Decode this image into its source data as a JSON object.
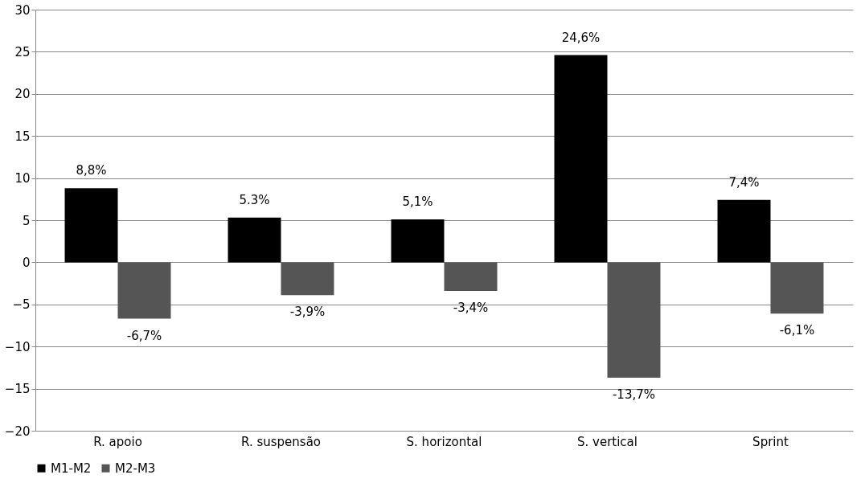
{
  "chart_data": {
    "type": "bar",
    "categories": [
      "R. apoio",
      "R. suspensão",
      "S. horizontal",
      "S. vertical",
      "Sprint"
    ],
    "series": [
      {
        "name": "M1-M2",
        "color": "#000000",
        "values": [
          8.8,
          5.3,
          5.1,
          24.6,
          7.4
        ],
        "value_labels": [
          "8,8%",
          "5.3%",
          "5,1%",
          "24,6%",
          "7,4%"
        ]
      },
      {
        "name": "M2-M3",
        "color": "#555555",
        "values": [
          -6.7,
          -3.9,
          -3.4,
          -13.7,
          -6.1
        ],
        "value_labels": [
          "-6,7%",
          "-3,9%",
          "-3,4%",
          "-13,7%",
          "-6,1%"
        ]
      }
    ],
    "ylim": [
      -20,
      30
    ],
    "yticks": [
      -20,
      -15,
      -10,
      -5,
      0,
      5,
      10,
      15,
      20,
      25,
      30
    ],
    "grid": "y",
    "legend": "bottom"
  }
}
